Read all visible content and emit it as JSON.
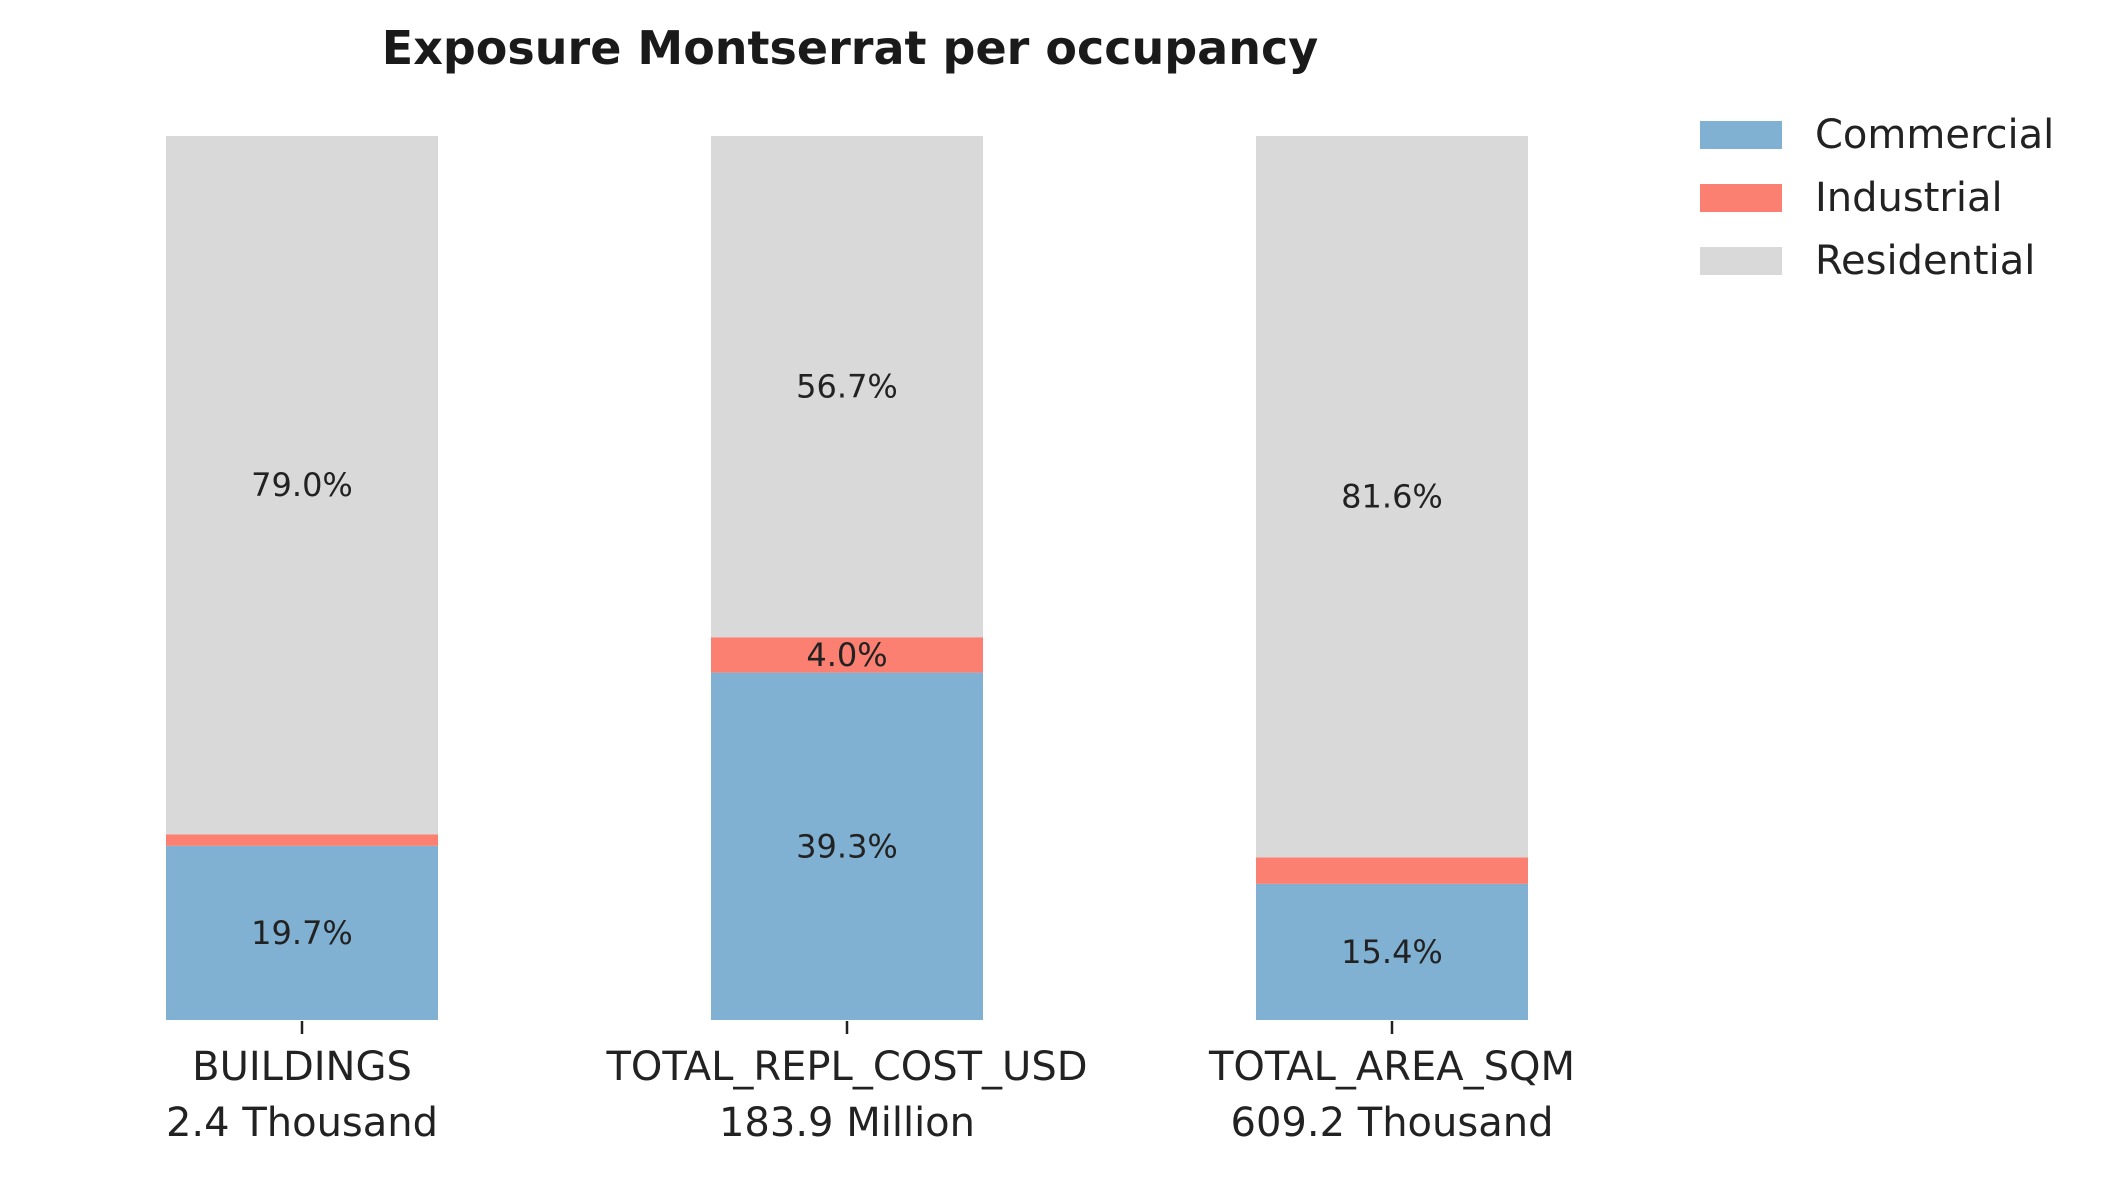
{
  "chart_data": {
    "type": "bar",
    "stacked": true,
    "normalized": true,
    "title": "Exposure Montserrat per occupancy",
    "categories": [
      "BUILDINGS",
      "TOTAL_REPL_COST_USD",
      "TOTAL_AREA_SQM"
    ],
    "category_totals": [
      "2.4 Thousand",
      "183.9 Million",
      "609.2 Thousand"
    ],
    "ylim": [
      0,
      100
    ],
    "unit": "%",
    "grid": false,
    "legend_position": "top-right",
    "series": [
      {
        "name": "Commercial",
        "color": "#80b1d3",
        "values": [
          19.7,
          39.3,
          15.4
        ],
        "labels": [
          "19.7%",
          "39.3%",
          "15.4%"
        ]
      },
      {
        "name": "Industrial",
        "color": "#fb8072",
        "values": [
          1.3,
          4.0,
          3.0
        ],
        "labels": [
          "",
          "4.0%",
          ""
        ]
      },
      {
        "name": "Residential",
        "color": "#d9d9d9",
        "values": [
          79.0,
          56.7,
          81.6
        ],
        "labels": [
          "79.0%",
          "56.7%",
          "81.6%"
        ]
      }
    ]
  }
}
